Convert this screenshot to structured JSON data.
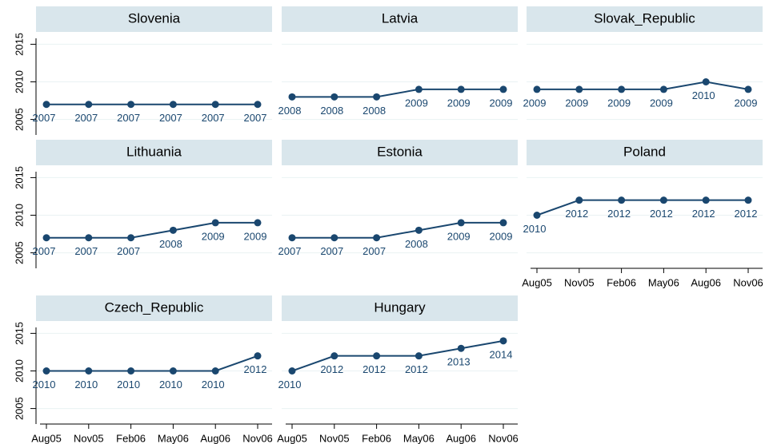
{
  "chart_data": [
    {
      "type": "line",
      "title": "Slovenia",
      "categories": [
        null,
        null,
        null,
        null,
        null,
        null
      ],
      "values": [
        2007,
        2007,
        2007,
        2007,
        2007,
        2007
      ],
      "color": "#1a476f",
      "ylim": [
        2004,
        2016
      ],
      "yticks": [
        2005,
        2010,
        2015
      ],
      "ytick_labels": true,
      "grid": true
    },
    {
      "type": "line",
      "title": "Latvia",
      "categories": [
        null,
        null,
        null,
        null,
        null,
        null
      ],
      "values": [
        2008,
        2008,
        2008,
        2009,
        2009,
        2009
      ],
      "color": "#1a476f",
      "ylim": [
        2004,
        2016
      ],
      "yticks": [
        2005,
        2010,
        2015
      ],
      "ytick_labels": false,
      "grid": true
    },
    {
      "type": "line",
      "title": "Slovak_Republic",
      "categories": [
        null,
        null,
        null,
        null,
        null,
        null
      ],
      "values": [
        2009,
        2009,
        2009,
        2009,
        2010,
        2009
      ],
      "color": "#1a476f",
      "ylim": [
        2004,
        2016
      ],
      "yticks": [
        2005,
        2010,
        2015
      ],
      "ytick_labels": false,
      "grid": true
    },
    {
      "type": "line",
      "title": "Lithuania",
      "categories": [
        null,
        null,
        null,
        null,
        null,
        null
      ],
      "values": [
        2007,
        2007,
        2007,
        2008,
        2009,
        2009
      ],
      "color": "#1a476f",
      "ylim": [
        2004,
        2016
      ],
      "yticks": [
        2005,
        2010,
        2015
      ],
      "ytick_labels": true,
      "grid": true
    },
    {
      "type": "line",
      "title": "Estonia",
      "categories": [
        null,
        null,
        null,
        null,
        null,
        null
      ],
      "values": [
        2007,
        2007,
        2007,
        2008,
        2009,
        2009
      ],
      "color": "#1a476f",
      "ylim": [
        2004,
        2016
      ],
      "yticks": [
        2005,
        2010,
        2015
      ],
      "ytick_labels": false,
      "grid": true
    },
    {
      "type": "line",
      "title": "Poland",
      "categories": [
        "Aug05",
        "Nov05",
        "Feb06",
        "May06",
        "Aug06",
        "Nov06"
      ],
      "values": [
        2010,
        2012,
        2012,
        2012,
        2012,
        2012
      ],
      "color": "#1a476f",
      "ylim": [
        2004,
        2016
      ],
      "yticks": [
        2005,
        2010,
        2015
      ],
      "ytick_labels": false,
      "grid": true
    },
    {
      "type": "line",
      "title": "Czech_Republic",
      "categories": [
        "Aug05",
        "Nov05",
        "Feb06",
        "May06",
        "Aug06",
        "Nov06"
      ],
      "values": [
        2010,
        2010,
        2010,
        2010,
        2010,
        2012
      ],
      "color": "#1a476f",
      "ylim": [
        2004,
        2016
      ],
      "yticks": [
        2005,
        2010,
        2015
      ],
      "ytick_labels": true,
      "grid": true
    },
    {
      "type": "line",
      "title": "Hungary",
      "categories": [
        "Aug05",
        "Nov05",
        "Feb06",
        "May06",
        "Aug06",
        "Nov06"
      ],
      "values": [
        2010,
        2012,
        2012,
        2012,
        2013,
        2014
      ],
      "color": "#1a476f",
      "ylim": [
        2004,
        2016
      ],
      "yticks": [
        2005,
        2010,
        2015
      ],
      "ytick_labels": false,
      "grid": true
    }
  ]
}
